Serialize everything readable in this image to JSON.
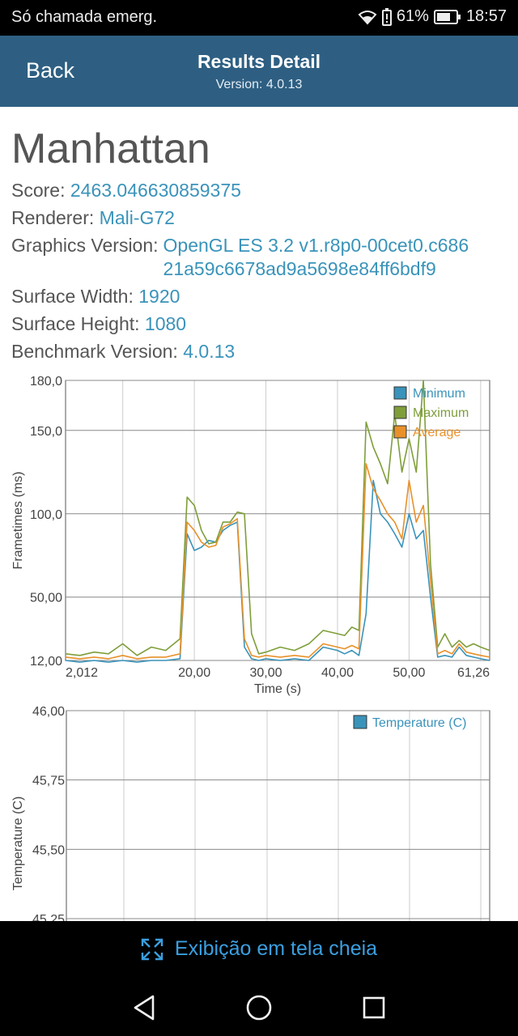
{
  "status_bar": {
    "carrier": "Só chamada emerg.",
    "battery": "61%",
    "time": "18:57",
    "icons": [
      "wifi-icon",
      "battery-alert-icon",
      "battery-icon"
    ]
  },
  "header": {
    "back_label": "Back",
    "title": "Results Detail",
    "version": "Version: 4.0.13"
  },
  "details": {
    "name": "Manhattan",
    "score_label": "Score:",
    "score": "2463.046630859375",
    "renderer_label": "Renderer:",
    "renderer": "Mali-G72",
    "graphics_label": "Graphics Version:",
    "graphics_line1": "OpenGL ES 3.2 v1.r8p0-00cet0.c686",
    "graphics_line2": "21a59c6678ad9a5698e84ff6bdf9",
    "width_label": "Surface Width:",
    "width": "1920",
    "height_label": "Surface Height:",
    "height": "1080",
    "bench_label": "Benchmark Version:",
    "bench": "4.0.13"
  },
  "chart_data": [
    {
      "type": "line",
      "xlabel": "Time (s)",
      "ylabel": "Frametimes (ms)",
      "xlim": [
        2.012,
        61.26
      ],
      "ylim": [
        12.0,
        180.0
      ],
      "x_ticks": [
        "2,012",
        "20,00",
        "30,00",
        "40,00",
        "50,00",
        "61,26"
      ],
      "y_ticks": [
        "180,0",
        "150,0",
        "100,0",
        "50,00",
        "12,00"
      ],
      "grid": true,
      "legend_position": "top-right",
      "x": [
        2,
        4,
        6,
        8,
        10,
        12,
        14,
        16,
        18,
        19,
        20,
        21,
        22,
        23,
        24,
        25,
        26,
        27,
        28,
        29,
        30,
        32,
        34,
        36,
        38,
        40,
        41,
        42,
        43,
        44,
        45,
        46,
        47,
        48,
        49,
        50,
        51,
        52,
        53,
        54,
        55,
        56,
        57,
        58,
        59,
        60,
        61.26
      ],
      "series": [
        {
          "name": "Minimum",
          "color": "#3a93ba",
          "values": [
            12,
            11,
            12,
            11,
            12,
            11,
            12,
            12,
            13,
            88,
            78,
            80,
            84,
            83,
            90,
            93,
            95,
            20,
            13,
            12,
            13,
            12,
            13,
            12,
            20,
            18,
            16,
            18,
            15,
            40,
            120,
            100,
            95,
            88,
            80,
            100,
            85,
            90,
            50,
            14,
            15,
            14,
            20,
            15,
            14,
            13,
            12
          ]
        },
        {
          "name": "Maximum",
          "color": "#7f9e3a",
          "values": [
            16,
            15,
            17,
            16,
            22,
            15,
            20,
            18,
            25,
            110,
            105,
            90,
            82,
            83,
            95,
            95,
            101,
            100,
            28,
            16,
            17,
            20,
            18,
            22,
            30,
            28,
            27,
            32,
            30,
            155,
            140,
            130,
            118,
            160,
            125,
            145,
            125,
            180,
            70,
            20,
            28,
            20,
            24,
            20,
            22,
            20,
            18
          ]
        },
        {
          "name": "Average",
          "color": "#e8912a",
          "values": [
            14,
            13,
            14,
            13,
            15,
            13,
            14,
            14,
            16,
            95,
            90,
            83,
            80,
            81,
            92,
            94,
            97,
            25,
            15,
            14,
            15,
            14,
            15,
            14,
            22,
            20,
            19,
            21,
            19,
            130,
            115,
            108,
            100,
            95,
            85,
            120,
            95,
            105,
            60,
            16,
            18,
            16,
            22,
            17,
            16,
            15,
            14
          ]
        }
      ]
    },
    {
      "type": "line",
      "xlabel": "",
      "ylabel": "Temperature (C)",
      "ylim": [
        45.25,
        46.0
      ],
      "y_ticks": [
        "46,00",
        "45,75",
        "45,50",
        "45,25"
      ],
      "grid": true,
      "legend_position": "top-right",
      "series": [
        {
          "name": "Temperature (C)",
          "color": "#3a93ba",
          "values": []
        }
      ]
    }
  ],
  "fullscreen": {
    "label": "Exibição em tela cheia",
    "icon": "fullscreen-icon"
  },
  "nav": {
    "icons": [
      "back-nav-icon",
      "home-nav-icon",
      "recents-nav-icon"
    ]
  }
}
